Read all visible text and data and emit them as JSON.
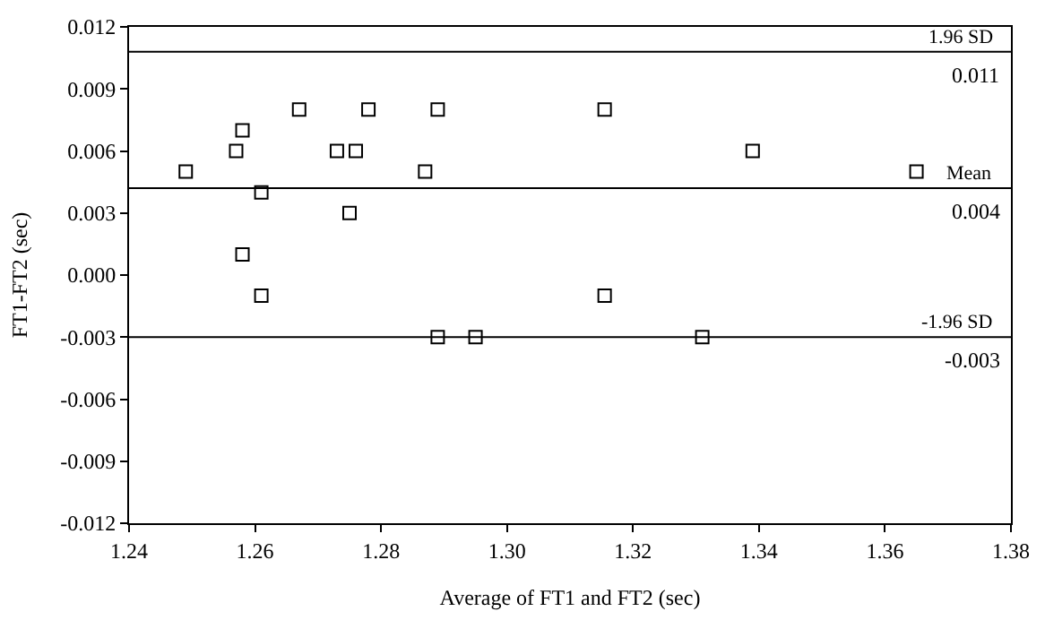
{
  "chart_data": {
    "type": "scatter",
    "xlabel": "Average of FT1 and FT2 (sec)",
    "ylabel": "FT1-FT2 (sec)",
    "x": [
      1.249,
      1.257,
      1.258,
      1.258,
      1.261,
      1.261,
      1.267,
      1.273,
      1.275,
      1.276,
      1.278,
      1.287,
      1.289,
      1.289,
      1.295,
      1.3155,
      1.3155,
      1.331,
      1.339,
      1.365
    ],
    "series": [
      {
        "color": "#000000",
        "values": [
          0.005,
          0.006,
          0.007,
          0.001,
          0.004,
          -0.001,
          0.008,
          0.006,
          0.003,
          0.006,
          0.008,
          0.005,
          0.008,
          -0.003,
          -0.003,
          0.008,
          -0.001,
          -0.003,
          0.006,
          0.005
        ]
      }
    ],
    "marker": "square",
    "xlim": [
      1.24,
      1.38
    ],
    "xticks": [
      {
        "value": 1.24,
        "label": "1.24"
      },
      {
        "value": 1.26,
        "label": "1.26"
      },
      {
        "value": 1.28,
        "label": "1.28"
      },
      {
        "value": 1.3,
        "label": "1.30"
      },
      {
        "value": 1.32,
        "label": "1.32"
      },
      {
        "value": 1.34,
        "label": "1.34"
      },
      {
        "value": 1.36,
        "label": "1.36"
      },
      {
        "value": 1.38,
        "label": "1.38"
      }
    ],
    "ylim": [
      -0.012,
      0.012
    ],
    "yticks": [
      {
        "value": -0.012,
        "label": "-0.012"
      },
      {
        "value": -0.009,
        "label": "-0.009"
      },
      {
        "value": -0.006,
        "label": "-0.006"
      },
      {
        "value": -0.003,
        "label": "-0.003"
      },
      {
        "value": 0,
        "label": "0.000"
      },
      {
        "value": 0.003,
        "label": "0.003"
      },
      {
        "value": 0.006,
        "label": "0.006"
      },
      {
        "value": 0.009,
        "label": "0.009"
      },
      {
        "value": 0.012,
        "label": "0.012"
      }
    ],
    "ref_lines": [
      {
        "axis": "y",
        "value": 0.0108,
        "label": "1.96 SD",
        "color": "#000000"
      },
      {
        "axis": "y",
        "value": 0.0042,
        "label": "Mean",
        "color": "#000000"
      },
      {
        "axis": "y",
        "value": -0.003,
        "label": "-1.96 SD",
        "color": "#000000"
      }
    ],
    "annotations": [
      "0.011",
      "0.004",
      "-0.003"
    ],
    "grid": false
  }
}
